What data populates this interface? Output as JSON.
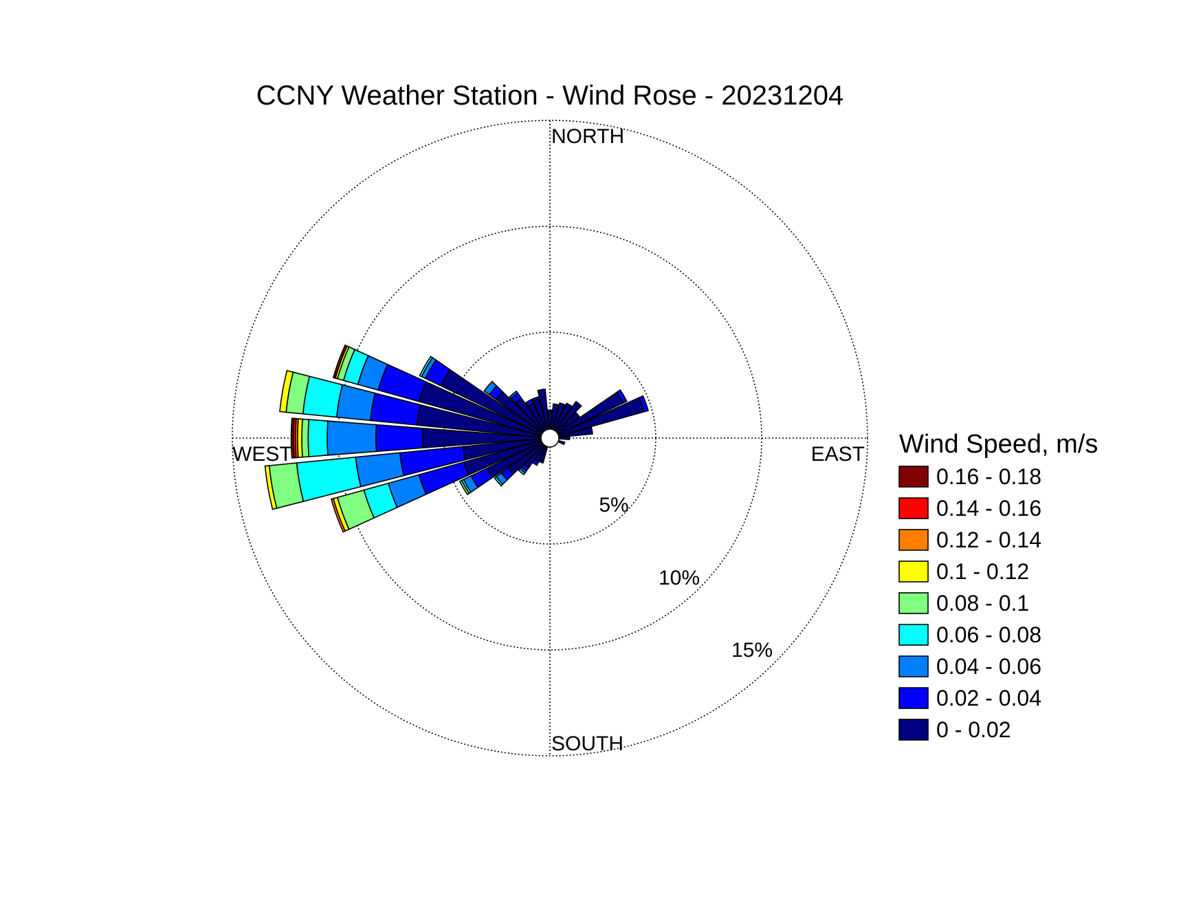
{
  "chart_data": {
    "type": "wind-rose",
    "title": "CCNY Weather Station - Wind Rose - 20231204",
    "directions": [
      "NORTH",
      "EAST",
      "SOUTH",
      "WEST"
    ],
    "ring_labels": [
      "5%",
      "10%",
      "15%"
    ],
    "ring_values": [
      5,
      10,
      15
    ],
    "rlim": [
      0,
      15
    ],
    "legend": {
      "title": "Wind Speed, m/s",
      "bins": [
        {
          "label": "0.16 - 0.18",
          "color": "#800000"
        },
        {
          "label": "0.14 - 0.16",
          "color": "#ff0000"
        },
        {
          "label": "0.12 - 0.14",
          "color": "#ff8000"
        },
        {
          "label": "0.1 - 0.12",
          "color": "#ffff00"
        },
        {
          "label": "0.08 - 0.1",
          "color": "#80ff80"
        },
        {
          "label": "0.06 - 0.08",
          "color": "#00ffff"
        },
        {
          "label": "0.04 - 0.06",
          "color": "#0080ff"
        },
        {
          "label": "0.02 - 0.04",
          "color": "#0000ff"
        },
        {
          "label": "0 - 0.02",
          "color": "#000080"
        }
      ]
    },
    "sector_width_deg": 10,
    "sectors": [
      {
        "direction_deg": 0,
        "counts": [
          0.9,
          0,
          0,
          0,
          0,
          0,
          0,
          0,
          0
        ]
      },
      {
        "direction_deg": 10,
        "counts": [
          1.2,
          0,
          0,
          0,
          0,
          0,
          0,
          0,
          0
        ]
      },
      {
        "direction_deg": 20,
        "counts": [
          1.3,
          0,
          0,
          0,
          0,
          0,
          0,
          0,
          0
        ]
      },
      {
        "direction_deg": 30,
        "counts": [
          1.4,
          0,
          0,
          0,
          0,
          0,
          0,
          0,
          0
        ]
      },
      {
        "direction_deg": 40,
        "counts": [
          1.7,
          0,
          0,
          0,
          0,
          0,
          0,
          0,
          0
        ]
      },
      {
        "direction_deg": 50,
        "counts": [
          1.3,
          0,
          0,
          0,
          0,
          0,
          0,
          0,
          0
        ]
      },
      {
        "direction_deg": 60,
        "counts": [
          3.4,
          0.2,
          0,
          0,
          0,
          0,
          0,
          0,
          0
        ]
      },
      {
        "direction_deg": 70,
        "counts": [
          4.2,
          0.2,
          0,
          0,
          0,
          0,
          0,
          0,
          0
        ]
      },
      {
        "direction_deg": 80,
        "counts": [
          1.6,
          0,
          0,
          0,
          0,
          0,
          0,
          0,
          0
        ]
      },
      {
        "direction_deg": 90,
        "counts": [
          0.5,
          0,
          0,
          0,
          0,
          0,
          0,
          0,
          0
        ]
      },
      {
        "direction_deg": 110,
        "counts": [
          0.3,
          0,
          0,
          0,
          0,
          0,
          0,
          0,
          0
        ]
      },
      {
        "direction_deg": 200,
        "counts": [
          0.7,
          0.1,
          0,
          0,
          0,
          0,
          0,
          0,
          0
        ]
      },
      {
        "direction_deg": 210,
        "counts": [
          0.8,
          0.2,
          0,
          0,
          0,
          0,
          0,
          0,
          0
        ]
      },
      {
        "direction_deg": 220,
        "counts": [
          1.3,
          0.2,
          0.1,
          0.1,
          0,
          0,
          0,
          0,
          0
        ]
      },
      {
        "direction_deg": 230,
        "counts": [
          2.0,
          0.4,
          0.3,
          0.1,
          0,
          0,
          0,
          0,
          0
        ]
      },
      {
        "direction_deg": 240,
        "counts": [
          2.9,
          0.8,
          0.4,
          0.1,
          0.1,
          0,
          0,
          0,
          0
        ]
      },
      {
        "direction_deg": 250,
        "counts": [
          3.8,
          2.2,
          1.5,
          1.2,
          1.3,
          0.2,
          0.1,
          0,
          0
        ]
      },
      {
        "direction_deg": 260,
        "counts": [
          3.7,
          3.0,
          2.1,
          2.8,
          1.3,
          0.2,
          0,
          0,
          0
        ]
      },
      {
        "direction_deg": 270,
        "counts": [
          5.6,
          2.2,
          2.3,
          0.9,
          0.3,
          0.2,
          0.1,
          0.1,
          0.1
        ]
      },
      {
        "direction_deg": 280,
        "counts": [
          5.9,
          2.2,
          1.6,
          1.6,
          0.8,
          0.3,
          0,
          0,
          0
        ]
      },
      {
        "direction_deg": 290,
        "counts": [
          6.0,
          2.0,
          1.0,
          0.7,
          0.3,
          0.1,
          0,
          0,
          0.1
        ]
      },
      {
        "direction_deg": 300,
        "counts": [
          5.3,
          0.8,
          0.2,
          0.1,
          0,
          0,
          0,
          0,
          0
        ]
      },
      {
        "direction_deg": 310,
        "counts": [
          2.7,
          0.4,
          0.3,
          0,
          0,
          0,
          0,
          0,
          0
        ]
      },
      {
        "direction_deg": 320,
        "counts": [
          1.9,
          0.3,
          0.1,
          0,
          0,
          0,
          0,
          0,
          0
        ]
      },
      {
        "direction_deg": 330,
        "counts": [
          1.4,
          0.2,
          0,
          0,
          0,
          0,
          0,
          0,
          0
        ]
      },
      {
        "direction_deg": 340,
        "counts": [
          1.5,
          0.1,
          0,
          0,
          0,
          0,
          0,
          0,
          0
        ]
      },
      {
        "direction_deg": 350,
        "counts": [
          1.9,
          0,
          0,
          0,
          0,
          0,
          0,
          0,
          0
        ]
      }
    ]
  }
}
